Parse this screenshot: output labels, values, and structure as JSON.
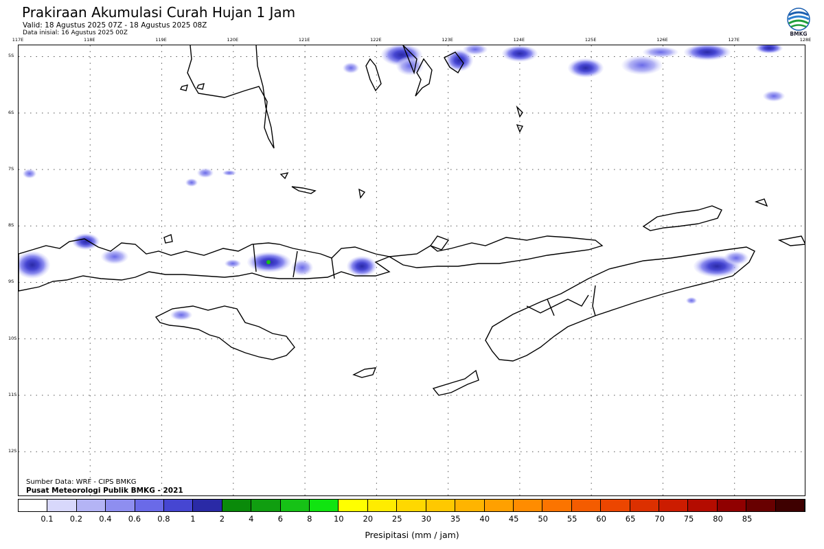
{
  "header": {
    "title": "Prakiraan Akumulasi Curah Hujan 1 Jam",
    "valid": "Valid: 18 Agustus 2025 07Z - 18 Agustus 2025 08Z",
    "init": "Data inisial: 16 Agustus 2025 00Z"
  },
  "logo": {
    "label": "BMKG"
  },
  "map": {
    "lon_labels": [
      "117E",
      "118E",
      "119E",
      "120E",
      "121E",
      "122E",
      "123E",
      "124E",
      "125E",
      "126E",
      "127E",
      "128E"
    ],
    "lat_labels": [
      "5S",
      "6S",
      "7S",
      "8S",
      "9S",
      "10S",
      "11S",
      "12S"
    ],
    "lon_range": [
      117,
      128
    ],
    "lat_range": [
      -4.8,
      -12.8
    ]
  },
  "source": {
    "line1": "Sumber Data: WRF - CIPS BMKG",
    "line2": "Pusat Meteorologi Publik BMKG - 2021"
  },
  "colorbar": {
    "colors": [
      "#ffffff",
      "#d8d8fb",
      "#b4b4f5",
      "#8e8ef0",
      "#6a6ae8",
      "#4646d2",
      "#2a2aa6",
      "#0a8a0a",
      "#109e10",
      "#16c216",
      "#10e410",
      "#ffff00",
      "#ffec00",
      "#ffd800",
      "#ffc800",
      "#ffb400",
      "#ffa000",
      "#ff8c00",
      "#fb7400",
      "#f45c00",
      "#ec4600",
      "#dc3000",
      "#cc1c00",
      "#b40c00",
      "#900000",
      "#680000",
      "#3e0000"
    ],
    "labels": [
      "0.1",
      "0.2",
      "0.4",
      "0.6",
      "0.8",
      "1",
      "2",
      "4",
      "6",
      "8",
      "10",
      "20",
      "25",
      "30",
      "35",
      "40",
      "45",
      "50",
      "55",
      "60",
      "65",
      "70",
      "75",
      "80",
      "85"
    ],
    "xlabel": "Presipitasi (mm / jam)"
  }
}
